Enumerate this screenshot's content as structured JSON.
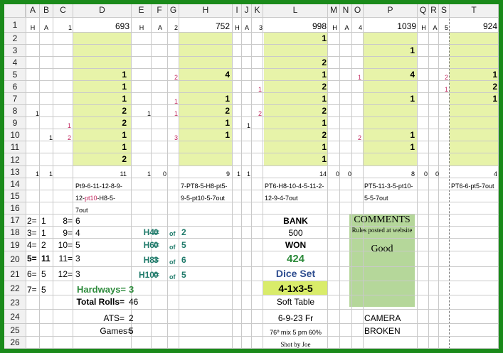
{
  "colors": {
    "frame": "#1a8a1a",
    "highlight": "#e7f3a9",
    "comment_box": "#b5d79a",
    "dice_set_bg": "#d9ec6a",
    "hardway_label": "#2e8b3c",
    "point_label": "#1f7a6a",
    "dice_set_label": "#2e4d8f",
    "point_red": "#c0245c"
  },
  "columns": [
    "A",
    "B",
    "C",
    "D",
    "E",
    "F",
    "G",
    "H",
    "I",
    "J",
    "K",
    "L",
    "M",
    "N",
    "O",
    "P",
    "Q",
    "R",
    "S",
    "T"
  ],
  "rows": [
    "1",
    "2",
    "3",
    "4",
    "5",
    "6",
    "7",
    "8",
    "9",
    "10",
    "11",
    "12",
    "13",
    "14",
    "15",
    "16",
    "17",
    "18",
    "19",
    "20",
    "21",
    "22",
    "23",
    "24",
    "25",
    "26"
  ],
  "row1": {
    "a": "H",
    "b": "A",
    "c": "1",
    "d": "693",
    "e": "H",
    "f": "A",
    "g": "2",
    "h": "752",
    "i": "H",
    "j": "A",
    "k": "3",
    "l": "998",
    "m": "H",
    "n": "A",
    "o": "4",
    "p": "1039",
    "q": "H",
    "r": "A",
    "s": "5",
    "t": "924"
  },
  "shooter1": {
    "d5": "1",
    "d6": "1",
    "d7": "1",
    "d8": "2",
    "d9": "2",
    "d10": "1",
    "d11": "1",
    "d12": "2",
    "c9": "1",
    "c10": "2",
    "b10": "1",
    "a8": "1",
    "a13": "1",
    "b13": "1",
    "d13": "11",
    "seq1": "Pt9-6-11-12-8-9-",
    "seq2a": "12-",
    "seq2b": "pt10",
    "seq2c": "-H8-5-",
    "seq3": "7out"
  },
  "shooter2": {
    "e8": "1",
    "g5": "2",
    "g7": "1",
    "g8": "1",
    "g10": "3",
    "h5": "4",
    "h7": "1",
    "h8": "2",
    "h9": "1",
    "h10": "1",
    "e13": "1",
    "f13": "0",
    "h13": "9",
    "i13": "1",
    "seq1": "7-PT8-5-H8-pt5-",
    "seq2": "9-5-pt10-5-7out"
  },
  "shooter3": {
    "k6": "1",
    "k8": "2",
    "j9": "1",
    "l2": "1",
    "l4": "2",
    "l5": "1",
    "l6": "2",
    "l7": "1",
    "l8": "2",
    "l9": "1",
    "l10": "2",
    "l11": "1",
    "l12": "1",
    "j13": "1",
    "l13": "14",
    "seq1": "PT6-H8-10-4-5-11-2-",
    "seq2": "12-9-4-7out"
  },
  "shooter4": {
    "o5": "1",
    "o10": "2",
    "p3": "1",
    "p5": "4",
    "p7": "1",
    "p10": "1",
    "p11": "1",
    "m13": "0",
    "n13": "0",
    "p13": "8",
    "seq1": "PT5-11-3-5-pt10-",
    "seq2": "5-5-7out"
  },
  "shooter5": {
    "s5": "2",
    "s6": "1",
    "t5": "1",
    "t6": "2",
    "t7": "1",
    "q13": "0",
    "r13": "0",
    "t13": "4",
    "seq1": "PT6-6-pt5-7out"
  },
  "stats": {
    "r17": [
      "2=",
      "1",
      "8=",
      "6"
    ],
    "r18": [
      "3=",
      "1",
      "9=",
      "4"
    ],
    "r19": [
      "4=",
      "2",
      "10=",
      "5"
    ],
    "r20": [
      "5=",
      "11",
      "11=",
      "3"
    ],
    "r21": [
      "6=",
      "5",
      "12=",
      "3"
    ],
    "r22": [
      "7=",
      "5"
    ]
  },
  "hardways": {
    "h4": "H4=",
    "h4v": "0",
    "h4of": "of",
    "h4t": "2",
    "h6": "H6=",
    "h6v": "0",
    "h6of": "of",
    "h6t": "5",
    "h8": "H8=",
    "h8v": "3",
    "h8of": "of",
    "h8t": "6",
    "h10": "H10=",
    "h10v": "0",
    "h10of": "of",
    "h10t": "5",
    "label": "Hardways=",
    "value": "3"
  },
  "totals": {
    "rolls_label": "Total Rolls=",
    "rolls": "46",
    "ats_label": "ATS=",
    "ats": "2",
    "games_label": "Games=",
    "games": "5"
  },
  "bank": {
    "bank_label": "BANK",
    "bank": "500",
    "won_label": "WON",
    "won": "424",
    "dice_set_label": "Dice Set",
    "dice_set": "4-1x3-5",
    "table": "Soft Table",
    "date": "6-9-23 Fr",
    "weather": "76º mix 5 pm 60%",
    "shot_by": "Shot by Joe"
  },
  "comments": {
    "title": "COMMENTS",
    "sub": "Rules posted at website",
    "body": "Good",
    "camera1": "CAMERA",
    "camera2": "BROKEN"
  }
}
